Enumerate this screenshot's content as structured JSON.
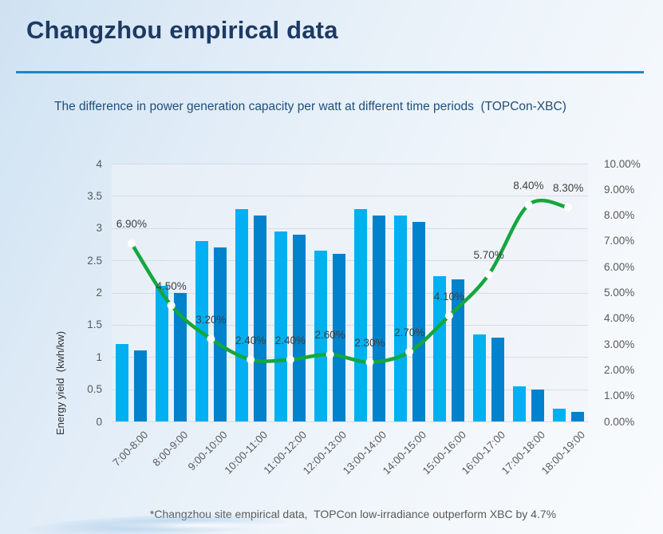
{
  "header": {
    "title": "Changzhou empirical data",
    "subtitle": "The difference in power generation capacity per watt at different time periods  (TOPCon-XBC)"
  },
  "footer": {
    "note": "*Changzhou site empirical data,  TOPCon low-irradiance outperform XBC by 4.7%"
  },
  "colors": {
    "bar1": "#00b0f0",
    "bar2": "#0082cc",
    "line": "#14a73e",
    "marker": "#ffffff",
    "title_text": "#1d3a64",
    "divider": "#1987c8",
    "subtitle_text": "#1f4e79",
    "axis_text": "#595959",
    "data_label_text": "#3f3f3f",
    "gridline": "#d9dce2"
  },
  "chart_data": {
    "type": "bar",
    "subtype": "grouped-bars-with-smoothed-line-overlay",
    "categories": [
      "7:00-8:00",
      "8:00-9:00",
      "9:00-10:00",
      "10:00-11:00",
      "11:00-12:00",
      "12:00-13:00",
      "13:00-14:00",
      "14:00-15:00",
      "15:00-16:00",
      "16:00-17:00",
      "17:00-18:00",
      "18:00-19:00"
    ],
    "series": [
      {
        "name": "bar-series-1",
        "type": "bar",
        "axis": "left",
        "color": "#00b0f0",
        "values": [
          1.2,
          2.1,
          2.8,
          3.3,
          2.95,
          2.65,
          3.3,
          3.2,
          2.25,
          1.35,
          0.55,
          0.2
        ]
      },
      {
        "name": "bar-series-2",
        "type": "bar",
        "axis": "left",
        "color": "#0082cc",
        "values": [
          1.1,
          2.0,
          2.7,
          3.2,
          2.9,
          2.6,
          3.2,
          3.1,
          2.2,
          1.3,
          0.5,
          0.15
        ]
      },
      {
        "name": "difference-line",
        "type": "line",
        "axis": "right",
        "color": "#14a73e",
        "marker_color": "#ffffff",
        "values": [
          6.9,
          4.5,
          3.2,
          2.4,
          2.4,
          2.6,
          2.3,
          2.7,
          4.1,
          5.7,
          8.4,
          8.3
        ],
        "labels": [
          "6.90%",
          "4.50%",
          "3.20%",
          "2.40%",
          "2.40%",
          "2.60%",
          "2.30%",
          "2.70%",
          "4.10%",
          "5.70%",
          "8.40%",
          "8.30%"
        ]
      }
    ],
    "left_axis": {
      "title": "Energy yield  (kwh/kw)",
      "min": 0,
      "max": 4,
      "ticks": [
        "4",
        "3.5",
        "3",
        "2.5",
        "2",
        "1.5",
        "1",
        "0.5",
        "0"
      ]
    },
    "right_axis": {
      "min": 0,
      "max": 10,
      "ticks": [
        "10.00%",
        "9.00%",
        "8.00%",
        "7.00%",
        "6.00%",
        "5.00%",
        "4.00%",
        "3.00%",
        "2.00%",
        "1.00%",
        "0.00%"
      ]
    },
    "grid": true,
    "legend": false
  }
}
